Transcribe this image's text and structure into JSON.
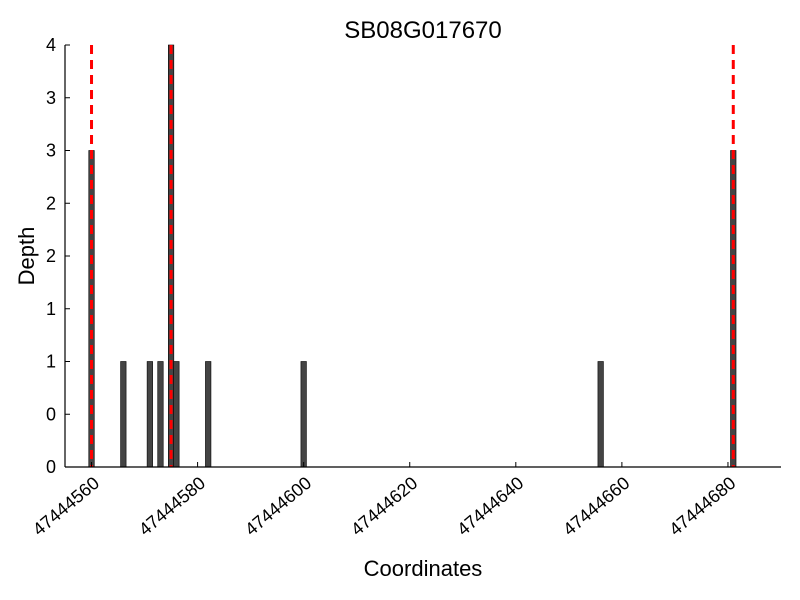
{
  "chart_data": {
    "type": "bar",
    "title": "SB08G017670",
    "xlabel": "Coordinates",
    "ylabel": "Depth",
    "xlim": [
      47444555,
      47444690
    ],
    "ylim": [
      0,
      4
    ],
    "x_ticks": [
      47444560,
      47444580,
      47444600,
      47444620,
      47444640,
      47444660,
      47444680
    ],
    "y_tick_values": [
      0,
      0.5,
      1,
      1.5,
      2,
      2.5,
      3,
      3.5,
      4
    ],
    "y_tick_labels": [
      "0",
      "0",
      "1",
      "1",
      "2",
      "2",
      "3",
      "3",
      "4"
    ],
    "grid": false,
    "legend": "none",
    "bar_color": "#444444",
    "marker_color": "#ff0000",
    "series": [
      {
        "x": [
          47444560,
          47444566,
          47444571,
          47444573,
          47444575,
          47444576,
          47444582,
          47444600,
          47444656,
          47444681
        ],
        "values": [
          3,
          1,
          1,
          1,
          4,
          1,
          1,
          1,
          1,
          3
        ]
      }
    ],
    "markers": [
      47444560,
      47444575,
      47444681
    ]
  }
}
